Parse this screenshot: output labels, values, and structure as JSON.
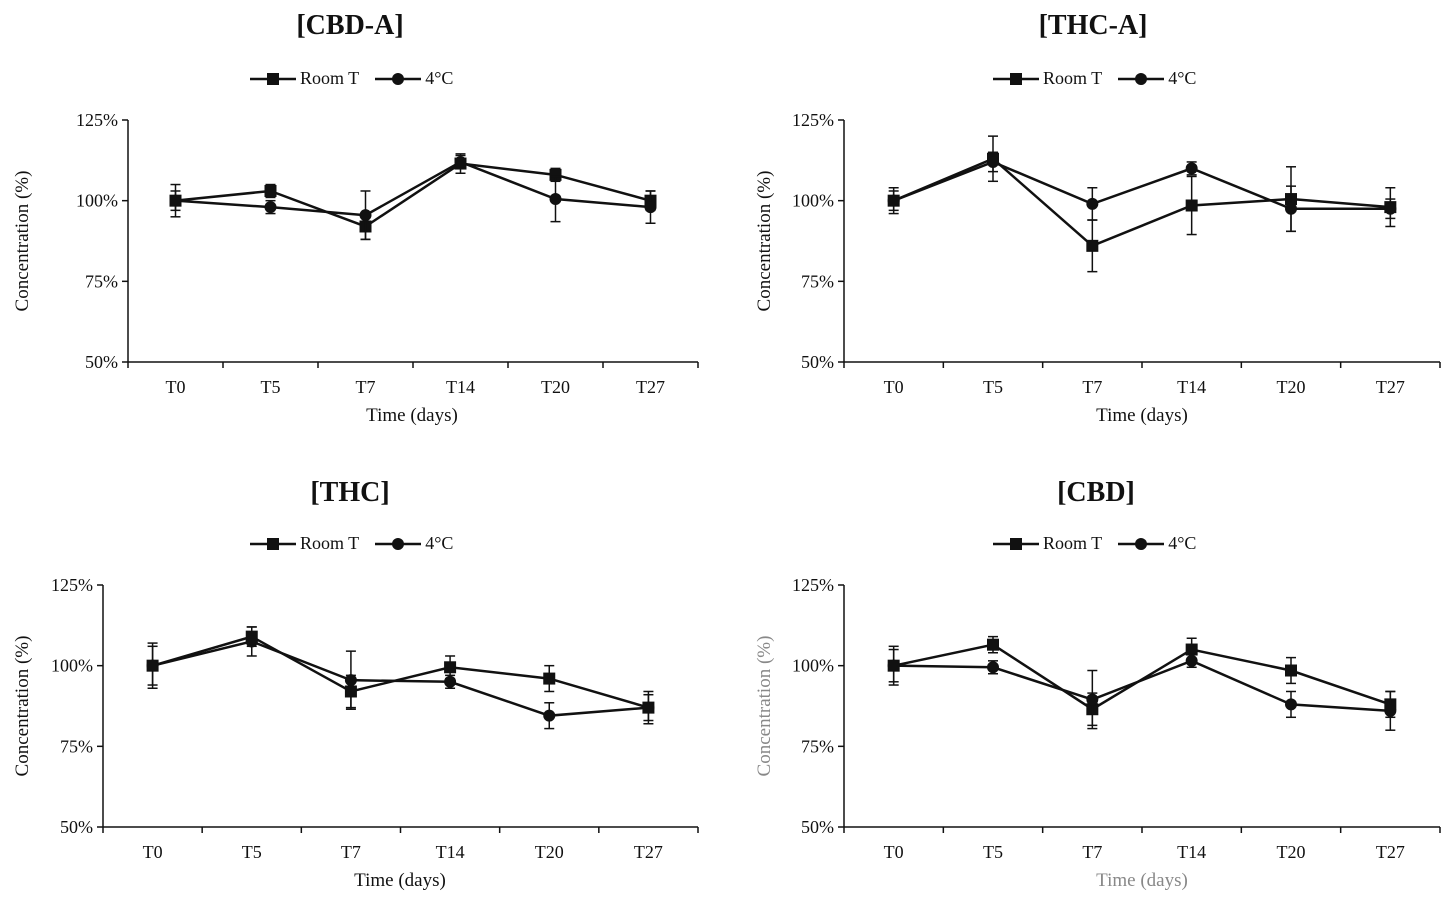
{
  "chart_data": [
    {
      "type": "line",
      "title": "[CBD-A]",
      "categories": [
        "T0",
        "T5",
        "T7",
        "T14",
        "T20",
        "T27"
      ],
      "xlabel": "Time (days)",
      "ylabel": "Concentration (%)",
      "ylim": [
        50,
        125
      ],
      "yticks": [
        "50%",
        "75%",
        "100%",
        "125%"
      ],
      "series": [
        {
          "name": "Room T",
          "marker": "square",
          "values": [
            100,
            103,
            92,
            111.5,
            108,
            100
          ],
          "errors": [
            5,
            2,
            4,
            3,
            2,
            3
          ]
        },
        {
          "name": "4°C",
          "marker": "circle",
          "values": [
            100,
            98,
            95.5,
            112,
            100.5,
            98
          ],
          "errors": [
            3,
            2,
            7.5,
            2,
            7,
            5
          ]
        }
      ]
    },
    {
      "type": "line",
      "title": "[THC-A]",
      "categories": [
        "T0",
        "T5",
        "T7",
        "T14",
        "T20",
        "T27"
      ],
      "xlabel": "Time (days)",
      "ylabel": "Concentration (%)",
      "ylim": [
        50,
        125
      ],
      "yticks": [
        "50%",
        "75%",
        "100%",
        "125%"
      ],
      "series": [
        {
          "name": "Room T",
          "marker": "square",
          "values": [
            100,
            113,
            86,
            98.5,
            100.5,
            98
          ],
          "errors": [
            4,
            7,
            8,
            9,
            10,
            6
          ]
        },
        {
          "name": "4°C",
          "marker": "circle",
          "values": [
            100,
            112,
            99,
            110,
            97.5,
            97.5
          ],
          "errors": [
            3,
            3,
            5,
            2,
            7,
            3
          ]
        }
      ]
    },
    {
      "type": "line",
      "title": "[THC]",
      "categories": [
        "T0",
        "T5",
        "T7",
        "T14",
        "T20",
        "T27"
      ],
      "xlabel": "Time (days)",
      "ylabel": "Concentration (%)",
      "ylim": [
        50,
        125
      ],
      "yticks": [
        "50%",
        "75%",
        "100%",
        "125%"
      ],
      "series": [
        {
          "name": "Room T",
          "marker": "square",
          "values": [
            100,
            109,
            92,
            99.5,
            96,
            87
          ],
          "errors": [
            7,
            3,
            5,
            3.5,
            4,
            5
          ]
        },
        {
          "name": "4°C",
          "marker": "circle",
          "values": [
            100,
            107.5,
            95.5,
            95,
            84.5,
            87
          ],
          "errors": [
            6,
            4.5,
            9,
            2,
            4,
            4
          ]
        }
      ]
    },
    {
      "type": "line",
      "title": "[CBD]",
      "categories": [
        "T0",
        "T5",
        "T7",
        "T14",
        "T20",
        "T27"
      ],
      "xlabel": "Time (days)",
      "ylabel": "Concentration (%)",
      "ylim": [
        50,
        125
      ],
      "yticks": [
        "50%",
        "75%",
        "100%",
        "125%"
      ],
      "series": [
        {
          "name": "Room T",
          "marker": "square",
          "values": [
            100,
            106.5,
            86.5,
            105,
            98.5,
            88
          ],
          "errors": [
            6,
            2.5,
            5,
            3.5,
            4,
            4
          ]
        },
        {
          "name": "4°C",
          "marker": "circle",
          "values": [
            100,
            99.5,
            89.5,
            101.5,
            88,
            86
          ],
          "errors": [
            5,
            2,
            9,
            2,
            4,
            6
          ]
        }
      ]
    }
  ]
}
